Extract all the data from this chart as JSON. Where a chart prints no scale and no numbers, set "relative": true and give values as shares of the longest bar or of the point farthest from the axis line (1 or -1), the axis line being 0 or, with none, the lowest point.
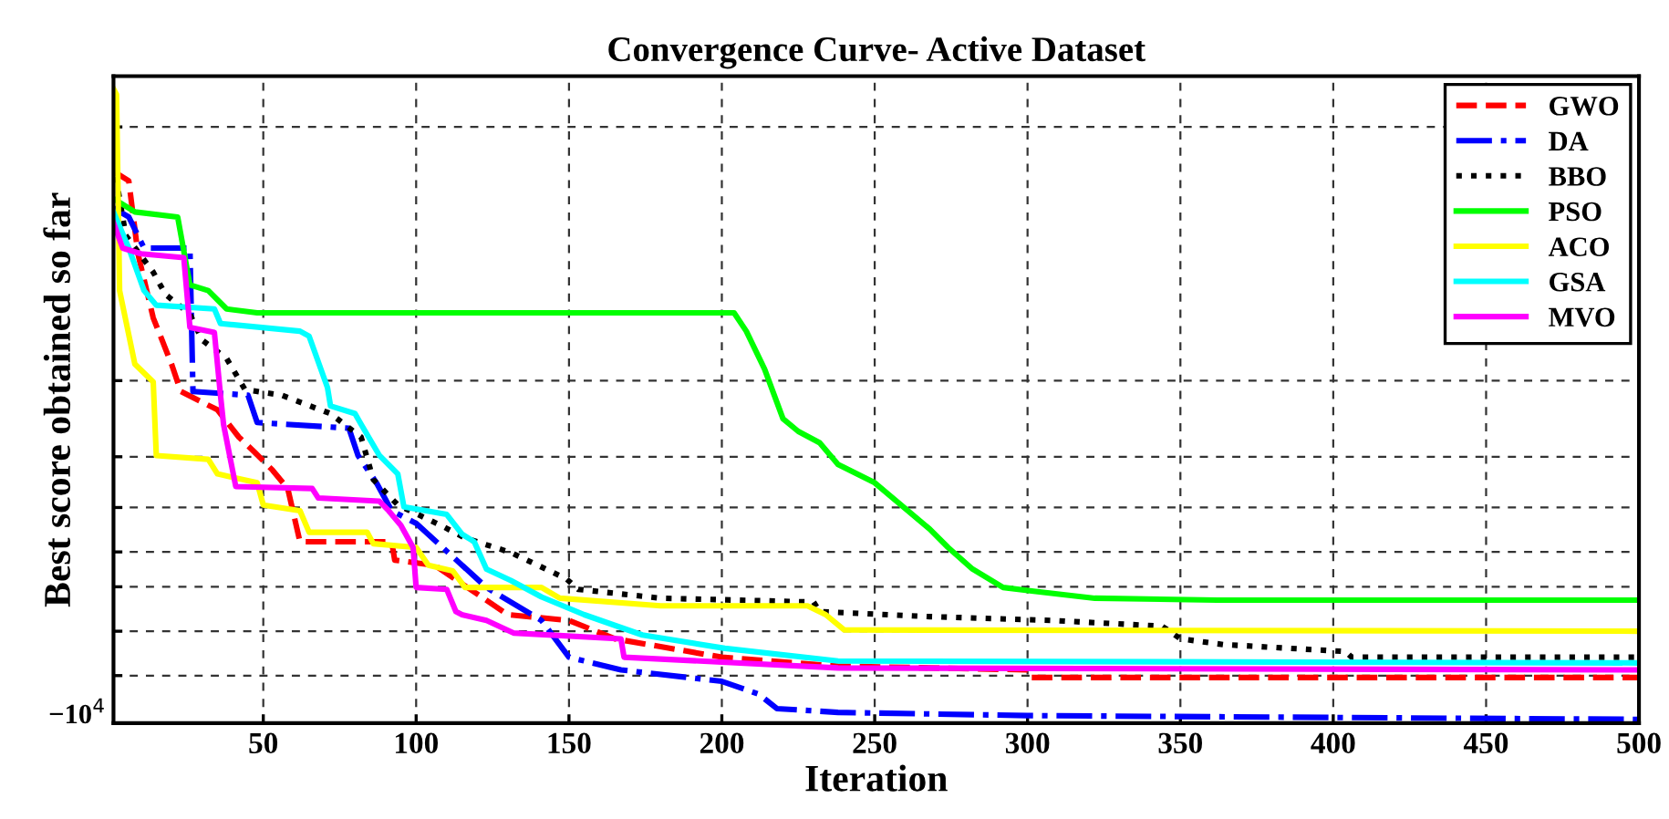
{
  "chart_data": {
    "type": "line",
    "title": "Convergence Curve- Active Dataset",
    "xlabel": "Iteration",
    "ylabel": "Best score obtained so far",
    "relative": true,
    "xlim": [
      1,
      500
    ],
    "xticks": [
      50,
      100,
      150,
      200,
      250,
      300,
      350,
      400,
      450,
      500
    ],
    "grid": true,
    "legend": "top right",
    "marker": "none",
    "annotations": [
      "−10$^{4}$"
    ],
    "series": [
      {
        "name": "GWO",
        "color": "#ff0000",
        "line_style": "dashed",
        "x": [
          1,
          6,
          9,
          14,
          20,
          23,
          35,
          42,
          47,
          53,
          58,
          62,
          92,
          93,
          106,
          130,
          150,
          165,
          200,
          238,
          300,
          301,
          500
        ],
        "values": [
          0.87,
          0.855,
          0.74,
          0.639,
          0.566,
          0.523,
          0.494,
          0.451,
          0.428,
          0.399,
          0.37,
          0.286,
          0.286,
          0.257,
          0.249,
          0.171,
          0.162,
          0.133,
          0.104,
          0.09,
          0.084,
          0.072,
          0.072
        ]
      },
      {
        "name": "DA",
        "color": "#0000ff",
        "line_style": "dashdot",
        "x": [
          1,
          6,
          11,
          26,
          27,
          45,
          48,
          78,
          81,
          87,
          92,
          100,
          123,
          141,
          150,
          167,
          200,
          212,
          218,
          238,
          300,
          500
        ],
        "values": [
          0.812,
          0.798,
          0.749,
          0.749,
          0.523,
          0.517,
          0.474,
          0.465,
          0.422,
          0.379,
          0.335,
          0.315,
          0.214,
          0.162,
          0.104,
          0.084,
          0.066,
          0.046,
          0.023,
          0.017,
          0.012,
          0.006
        ]
      },
      {
        "name": "BBO",
        "color": "#000000",
        "line_style": "dotted",
        "x": [
          1,
          5,
          14,
          18,
          26,
          30,
          38,
          44,
          56,
          72,
          82,
          86,
          94,
          108,
          116,
          131,
          149,
          153,
          180,
          230,
          232,
          268,
          308,
          344,
          350,
          364,
          404,
          406,
          500
        ],
        "values": [
          0.884,
          0.769,
          0.711,
          0.676,
          0.645,
          0.604,
          0.575,
          0.526,
          0.517,
          0.488,
          0.451,
          0.384,
          0.344,
          0.312,
          0.292,
          0.269,
          0.228,
          0.211,
          0.197,
          0.191,
          0.176,
          0.168,
          0.162,
          0.153,
          0.133,
          0.124,
          0.113,
          0.104,
          0.104
        ]
      },
      {
        "name": "PSO",
        "color": "#00ff00",
        "line_style": "solid",
        "x": [
          1,
          8,
          22,
          26,
          32,
          38,
          48,
          204,
          208,
          214,
          220,
          225,
          232,
          238,
          250,
          268,
          274,
          282,
          292,
          302,
          322,
          362,
          500
        ],
        "values": [
          0.827,
          0.806,
          0.798,
          0.691,
          0.682,
          0.653,
          0.647,
          0.647,
          0.618,
          0.558,
          0.48,
          0.46,
          0.442,
          0.408,
          0.379,
          0.306,
          0.277,
          0.243,
          0.214,
          0.208,
          0.197,
          0.194,
          0.194
        ]
      },
      {
        "name": "ACO",
        "color": "#ffff00",
        "line_style": "solid",
        "x": [
          1,
          2,
          3,
          8,
          14,
          15,
          32,
          35,
          48,
          50,
          62,
          65,
          84,
          86,
          100,
          104,
          112,
          116,
          141,
          147,
          180,
          228,
          234,
          240,
          500
        ],
        "values": [
          1.0,
          0.991,
          0.682,
          0.566,
          0.538,
          0.422,
          0.416,
          0.393,
          0.379,
          0.344,
          0.335,
          0.301,
          0.301,
          0.283,
          0.277,
          0.249,
          0.24,
          0.214,
          0.214,
          0.197,
          0.185,
          0.185,
          0.171,
          0.147,
          0.145
        ]
      },
      {
        "name": "GSA",
        "color": "#00ffff",
        "line_style": "solid",
        "x": [
          1,
          6,
          11,
          15,
          34,
          36,
          62,
          65,
          71,
          72,
          80,
          82,
          88,
          94,
          96,
          110,
          115,
          119,
          123,
          131,
          141,
          155,
          174,
          201,
          238,
          500
        ],
        "values": [
          0.806,
          0.749,
          0.682,
          0.659,
          0.653,
          0.63,
          0.618,
          0.61,
          0.529,
          0.5,
          0.488,
          0.471,
          0.422,
          0.393,
          0.341,
          0.329,
          0.298,
          0.286,
          0.243,
          0.225,
          0.199,
          0.171,
          0.139,
          0.118,
          0.098,
          0.095
        ]
      },
      {
        "name": "MVO",
        "color": "#ff00ff",
        "line_style": "solid",
        "x": [
          1,
          4,
          10,
          24,
          26,
          34,
          36,
          37,
          41,
          66,
          68,
          88,
          91,
          95,
          99,
          100,
          110,
          113,
          115,
          123,
          132,
          167,
          168,
          238,
          500
        ],
        "values": [
          0.789,
          0.749,
          0.74,
          0.734,
          0.624,
          0.616,
          0.517,
          0.471,
          0.373,
          0.37,
          0.355,
          0.35,
          0.335,
          0.312,
          0.277,
          0.214,
          0.211,
          0.176,
          0.171,
          0.162,
          0.142,
          0.133,
          0.104,
          0.087,
          0.084
        ]
      }
    ]
  }
}
